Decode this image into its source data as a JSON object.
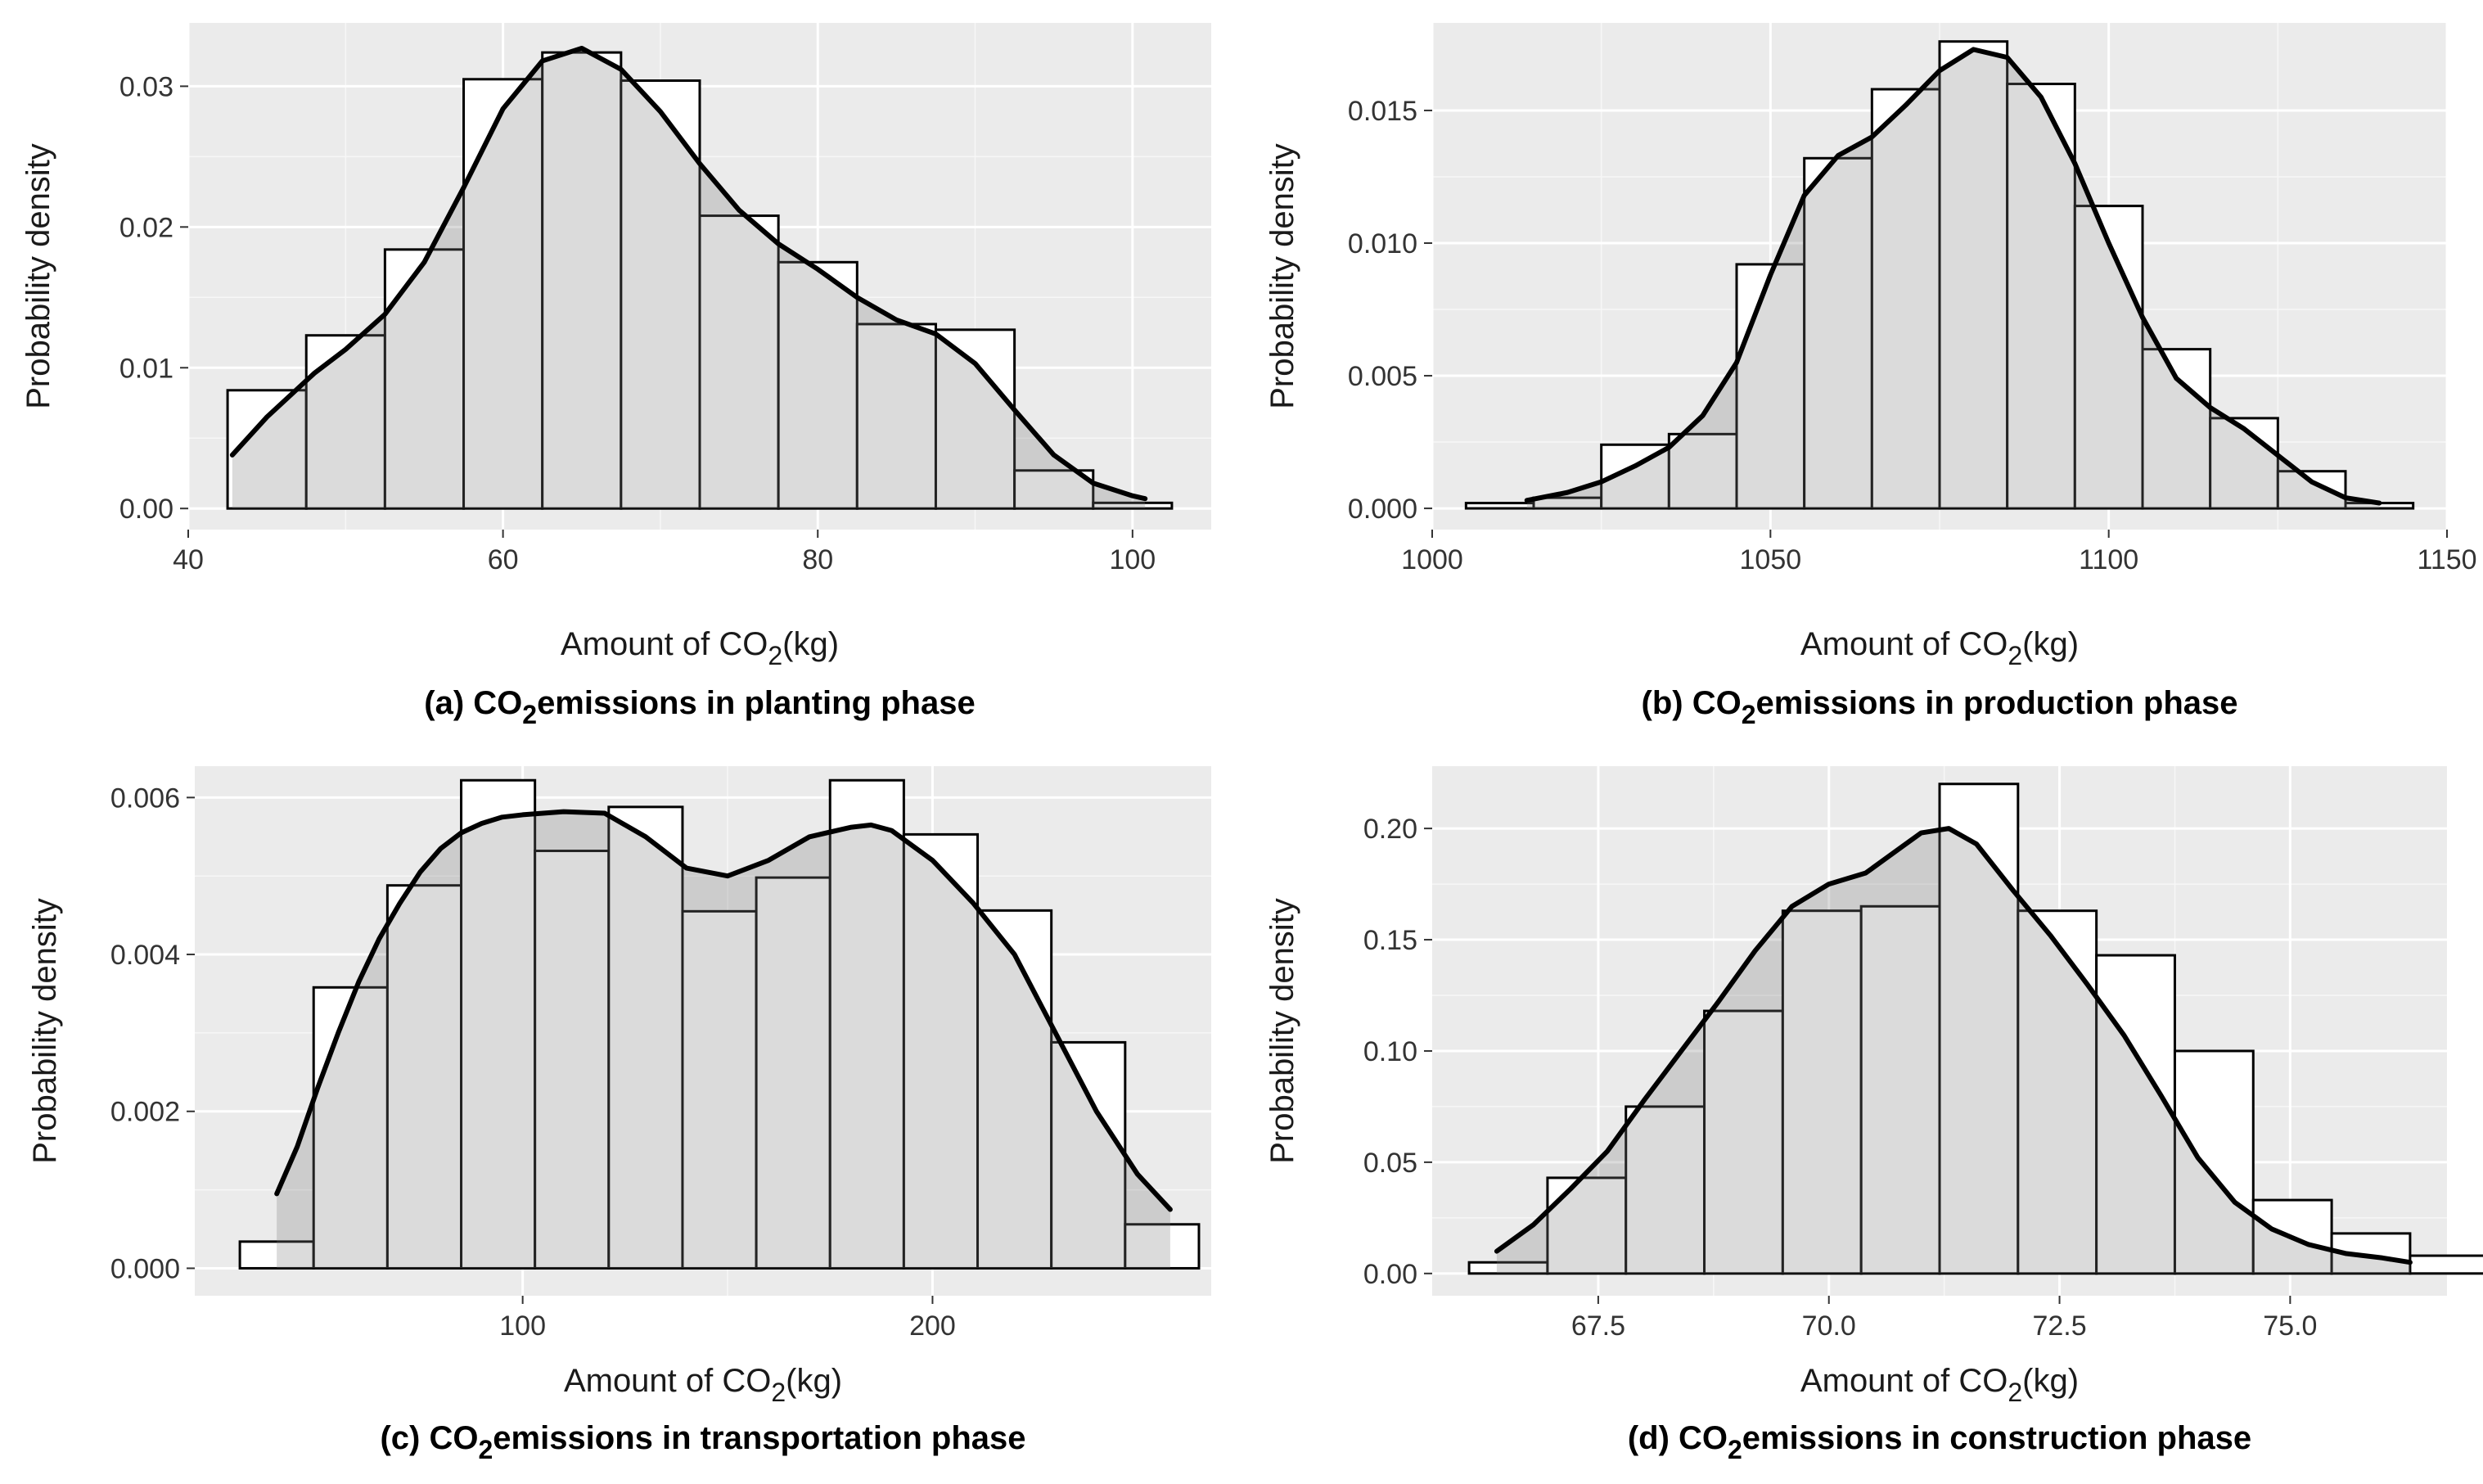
{
  "chart_data": [
    {
      "panel": "a",
      "type": "bar",
      "overlay": "density-line",
      "caption": {
        "pre": "(a) CO",
        "sub": "2",
        "post": "emissions in planting phase"
      },
      "xlabel": {
        "pre": "Amount of CO",
        "sub": "2",
        "post": "(kg)"
      },
      "ylabel": "Probability density",
      "xlim": [
        40,
        105
      ],
      "ylim": [
        -0.0015,
        0.0345
      ],
      "xticks": [
        40,
        60,
        80,
        100
      ],
      "xtick_labels": [
        "40",
        "60",
        "80",
        "100"
      ],
      "yticks": [
        0.0,
        0.01,
        0.02,
        0.03
      ],
      "ytick_labels": [
        "0.00",
        "0.01",
        "0.02",
        "0.03"
      ],
      "bins": [
        {
          "x0": 42.5,
          "x1": 47.5,
          "y": 0.0084
        },
        {
          "x0": 47.5,
          "x1": 52.5,
          "y": 0.0123
        },
        {
          "x0": 52.5,
          "x1": 57.5,
          "y": 0.0184
        },
        {
          "x0": 57.5,
          "x1": 62.5,
          "y": 0.0305
        },
        {
          "x0": 62.5,
          "x1": 67.5,
          "y": 0.0324
        },
        {
          "x0": 67.5,
          "x1": 72.5,
          "y": 0.0304
        },
        {
          "x0": 72.5,
          "x1": 77.5,
          "y": 0.0208
        },
        {
          "x0": 77.5,
          "x1": 82.5,
          "y": 0.0175
        },
        {
          "x0": 82.5,
          "x1": 87.5,
          "y": 0.0131
        },
        {
          "x0": 87.5,
          "x1": 92.5,
          "y": 0.0127
        },
        {
          "x0": 92.5,
          "x1": 97.5,
          "y": 0.0027
        },
        {
          "x0": 97.5,
          "x1": 102.5,
          "y": 0.0004
        }
      ],
      "density": {
        "x": [
          42.8,
          45,
          48,
          50,
          52.5,
          55,
          57.5,
          60,
          62.5,
          65,
          67.5,
          70,
          72.5,
          75,
          77.5,
          80,
          82.5,
          85,
          87.5,
          90,
          92.5,
          95,
          97.5,
          100,
          100.8
        ],
        "y": [
          0.0038,
          0.0065,
          0.0096,
          0.0113,
          0.0138,
          0.0175,
          0.0228,
          0.0284,
          0.0318,
          0.0327,
          0.0312,
          0.0282,
          0.0245,
          0.0212,
          0.0188,
          0.017,
          0.015,
          0.0134,
          0.0124,
          0.0103,
          0.007,
          0.0038,
          0.0018,
          0.0009,
          0.0007
        ]
      }
    },
    {
      "panel": "b",
      "type": "bar",
      "overlay": "density-line",
      "caption": {
        "pre": "(b) CO",
        "sub": "2",
        "post": "emissions in production phase"
      },
      "xlabel": {
        "pre": "Amount of CO",
        "sub": "2",
        "post": "(kg)"
      },
      "ylabel": "Probability density",
      "xlim": [
        1000,
        1150
      ],
      "ylim": [
        -0.0008,
        0.0183
      ],
      "xticks": [
        1000,
        1050,
        1100,
        1150
      ],
      "xtick_labels": [
        "1000",
        "1050",
        "1100",
        "1150"
      ],
      "yticks": [
        0.0,
        0.005,
        0.01,
        0.015
      ],
      "ytick_labels": [
        "0.000",
        "0.005",
        "0.010",
        "0.015"
      ],
      "bins": [
        {
          "x0": 1005,
          "x1": 1015,
          "y": 0.0002
        },
        {
          "x0": 1015,
          "x1": 1025,
          "y": 0.0004
        },
        {
          "x0": 1025,
          "x1": 1035,
          "y": 0.0024
        },
        {
          "x0": 1035,
          "x1": 1045,
          "y": 0.0028
        },
        {
          "x0": 1045,
          "x1": 1055,
          "y": 0.0092
        },
        {
          "x0": 1055,
          "x1": 1065,
          "y": 0.0132
        },
        {
          "x0": 1065,
          "x1": 1075,
          "y": 0.0158
        },
        {
          "x0": 1075,
          "x1": 1085,
          "y": 0.0176
        },
        {
          "x0": 1085,
          "x1": 1095,
          "y": 0.016
        },
        {
          "x0": 1095,
          "x1": 1105,
          "y": 0.0114
        },
        {
          "x0": 1105,
          "x1": 1115,
          "y": 0.006
        },
        {
          "x0": 1115,
          "x1": 1125,
          "y": 0.0034
        },
        {
          "x0": 1125,
          "x1": 1135,
          "y": 0.0014
        },
        {
          "x0": 1135,
          "x1": 1145,
          "y": 0.0002
        }
      ],
      "density": {
        "x": [
          1014,
          1020,
          1025,
          1030,
          1035,
          1040,
          1045,
          1050,
          1055,
          1060,
          1065,
          1070,
          1075,
          1080,
          1085,
          1090,
          1095,
          1100,
          1105,
          1110,
          1115,
          1120,
          1125,
          1130,
          1135,
          1140
        ],
        "y": [
          0.0003,
          0.0006,
          0.001,
          0.0016,
          0.0023,
          0.0035,
          0.0055,
          0.0088,
          0.0118,
          0.0133,
          0.014,
          0.0152,
          0.0165,
          0.0173,
          0.017,
          0.0155,
          0.013,
          0.01,
          0.0072,
          0.0049,
          0.0038,
          0.003,
          0.002,
          0.001,
          0.0004,
          0.0002
        ]
      }
    },
    {
      "panel": "c",
      "type": "bar",
      "overlay": "density-line",
      "caption": {
        "pre": "(c) CO",
        "sub": "2",
        "post": "emissions in transportation phase"
      },
      "xlabel": {
        "pre": "Amount of CO",
        "sub": "2",
        "post": "(kg)"
      },
      "ylabel": "Probability density",
      "xlim": [
        20,
        268
      ],
      "ylim": [
        -0.00035,
        0.0064
      ],
      "xticks": [
        100,
        200
      ],
      "xtick_labels": [
        "100",
        "200"
      ],
      "yticks": [
        0.0,
        0.002,
        0.004,
        0.006
      ],
      "ytick_labels": [
        "0.000",
        "0.002",
        "0.004",
        "0.006"
      ],
      "bins": [
        {
          "x0": 31,
          "x1": 49,
          "y": 0.00034
        },
        {
          "x0": 49,
          "x1": 67,
          "y": 0.00358
        },
        {
          "x0": 67,
          "x1": 85,
          "y": 0.00488
        },
        {
          "x0": 85,
          "x1": 103,
          "y": 0.00622
        },
        {
          "x0": 103,
          "x1": 121,
          "y": 0.00532
        },
        {
          "x0": 121,
          "x1": 139,
          "y": 0.00588
        },
        {
          "x0": 139,
          "x1": 157,
          "y": 0.00455
        },
        {
          "x0": 157,
          "x1": 175,
          "y": 0.00498
        },
        {
          "x0": 175,
          "x1": 193,
          "y": 0.00622
        },
        {
          "x0": 193,
          "x1": 211,
          "y": 0.00553
        },
        {
          "x0": 211,
          "x1": 229,
          "y": 0.00456
        },
        {
          "x0": 229,
          "x1": 247,
          "y": 0.00288
        },
        {
          "x0": 247,
          "x1": 265,
          "y": 0.00056
        }
      ],
      "density": {
        "x": [
          40,
          45,
          50,
          55,
          60,
          65,
          70,
          75,
          80,
          85,
          90,
          95,
          100,
          110,
          120,
          130,
          140,
          150,
          160,
          170,
          180,
          185,
          190,
          200,
          210,
          220,
          230,
          240,
          250,
          258
        ],
        "y": [
          0.00095,
          0.00155,
          0.0023,
          0.003,
          0.00365,
          0.0042,
          0.00465,
          0.00505,
          0.00535,
          0.00555,
          0.00567,
          0.00575,
          0.00578,
          0.00582,
          0.0058,
          0.0055,
          0.0051,
          0.005,
          0.0052,
          0.0055,
          0.00562,
          0.00565,
          0.00558,
          0.0052,
          0.00465,
          0.004,
          0.003,
          0.002,
          0.0012,
          0.00075
        ]
      }
    },
    {
      "panel": "d",
      "type": "bar",
      "overlay": "density-line",
      "caption": {
        "pre": "(d) CO",
        "sub": "2",
        "post": "emissions in construction phase"
      },
      "xlabel": {
        "pre": "Amount of CO",
        "sub": "2",
        "post": "(kg)"
      },
      "ylabel": "Probability density",
      "xlim": [
        65.7,
        76.7
      ],
      "ylim": [
        -0.01,
        0.228
      ],
      "xticks": [
        67.5,
        70.0,
        72.5,
        75.0
      ],
      "xtick_labels": [
        "67.5",
        "70.0",
        "72.5",
        "75.0"
      ],
      "yticks": [
        0.0,
        0.05,
        0.1,
        0.15,
        0.2
      ],
      "ytick_labels": [
        "0.00",
        "0.05",
        "0.10",
        "0.15",
        "0.20"
      ],
      "bins": [
        {
          "x0": 66.1,
          "x1": 66.95,
          "y": 0.005
        },
        {
          "x0": 66.95,
          "x1": 67.8,
          "y": 0.043
        },
        {
          "x0": 67.8,
          "x1": 68.65,
          "y": 0.075
        },
        {
          "x0": 68.65,
          "x1": 69.5,
          "y": 0.118
        },
        {
          "x0": 69.5,
          "x1": 70.35,
          "y": 0.163
        },
        {
          "x0": 70.35,
          "x1": 71.2,
          "y": 0.165
        },
        {
          "x0": 71.2,
          "x1": 72.05,
          "y": 0.22
        },
        {
          "x0": 72.05,
          "x1": 72.9,
          "y": 0.163
        },
        {
          "x0": 72.9,
          "x1": 73.75,
          "y": 0.143
        },
        {
          "x0": 73.75,
          "x1": 74.6,
          "y": 0.1
        },
        {
          "x0": 74.6,
          "x1": 75.45,
          "y": 0.033
        },
        {
          "x0": 75.45,
          "x1": 76.3,
          "y": 0.018
        },
        {
          "x0": 76.3,
          "x1": 77.15,
          "y": 0.008
        }
      ],
      "density": {
        "x": [
          66.4,
          66.8,
          67.2,
          67.6,
          68.0,
          68.4,
          68.8,
          69.2,
          69.6,
          70.0,
          70.4,
          70.8,
          71.0,
          71.3,
          71.6,
          72.0,
          72.4,
          72.8,
          73.2,
          73.6,
          74.0,
          74.4,
          74.8,
          75.2,
          75.6,
          76.0,
          76.3
        ],
        "y": [
          0.01,
          0.022,
          0.038,
          0.055,
          0.078,
          0.1,
          0.122,
          0.145,
          0.165,
          0.175,
          0.18,
          0.192,
          0.198,
          0.2,
          0.193,
          0.172,
          0.152,
          0.13,
          0.107,
          0.08,
          0.052,
          0.032,
          0.02,
          0.013,
          0.009,
          0.007,
          0.005
        ]
      }
    }
  ]
}
